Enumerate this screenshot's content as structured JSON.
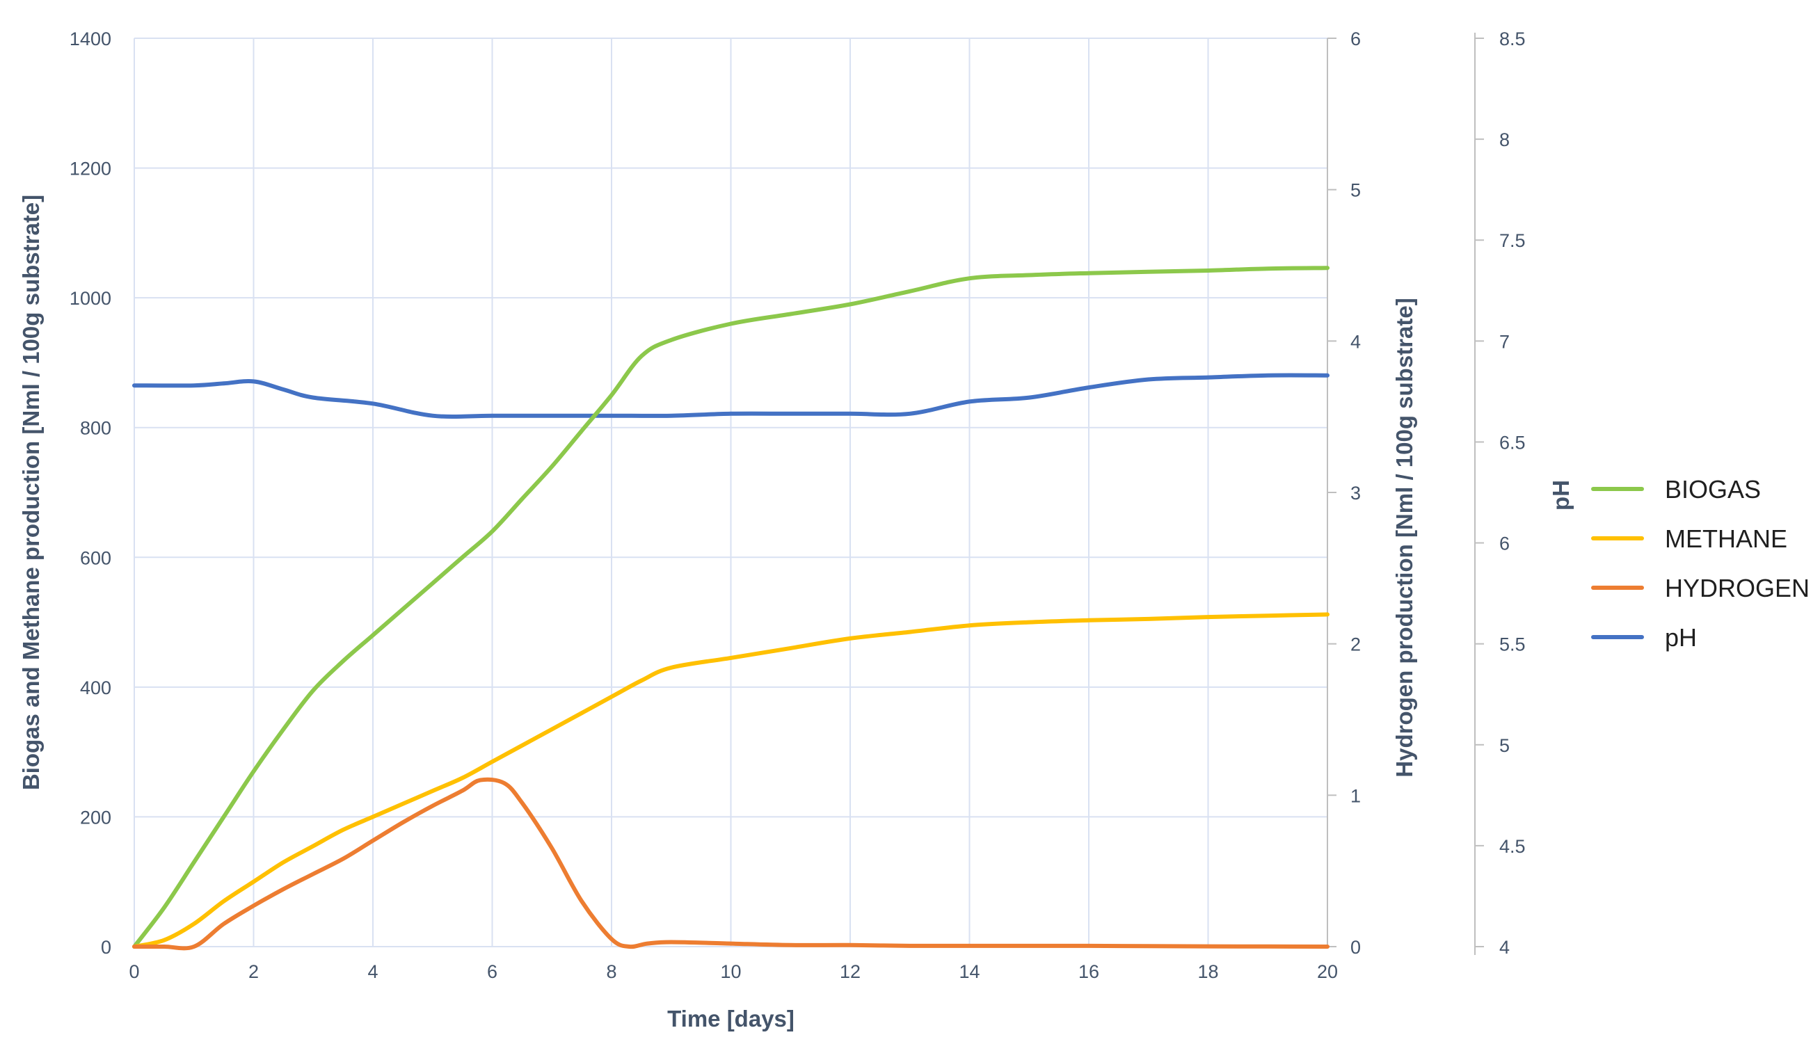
{
  "chart_data": {
    "type": "line",
    "title": "",
    "xlabel": "Time [days]",
    "ylabel_left": "Biogas and Methane production [Nml / 100g substrate]",
    "ylabel_right": "Hydrogen production [Nml / 100g substrate]",
    "ylabel_right2": "pH",
    "xlim": [
      0,
      20
    ],
    "ylim_left": [
      0,
      1400
    ],
    "ylim_right": [
      0,
      6
    ],
    "ylim_right2": [
      4,
      8.5
    ],
    "x_ticks": [
      "0",
      "2",
      "4",
      "6",
      "8",
      "10",
      "12",
      "14",
      "16",
      "18",
      "20"
    ],
    "y_left_ticks": [
      "0",
      "200",
      "400",
      "600",
      "800",
      "1000",
      "1200",
      "1400"
    ],
    "y_right_ticks": [
      "0",
      "1",
      "2",
      "3",
      "4",
      "5",
      "6"
    ],
    "y_right2_ticks": [
      "4",
      "4.5",
      "5",
      "5.5",
      "6",
      "6.5",
      "7",
      "7.5",
      "8",
      "8.5"
    ],
    "grid": true,
    "legend_position": "right",
    "series": [
      {
        "name": "BIOGAS",
        "axis": "left",
        "color": "#8cc84b",
        "x": [
          0,
          0.5,
          1,
          1.5,
          2,
          2.5,
          3,
          3.5,
          4,
          4.5,
          5,
          5.5,
          6,
          6.5,
          7,
          7.5,
          8,
          8.5,
          9,
          10,
          11,
          12,
          13,
          14,
          15,
          16,
          17,
          18,
          19,
          20
        ],
        "y": [
          0,
          60,
          130,
          200,
          270,
          335,
          395,
          440,
          480,
          520,
          560,
          600,
          640,
          690,
          740,
          795,
          850,
          910,
          935,
          960,
          975,
          990,
          1010,
          1030,
          1035,
          1038,
          1040,
          1042,
          1045,
          1046
        ]
      },
      {
        "name": "METHANE",
        "axis": "left",
        "color": "#ffc000",
        "x": [
          0,
          0.5,
          1,
          1.5,
          2,
          2.5,
          3,
          3.5,
          4,
          4.5,
          5,
          5.5,
          6,
          6.5,
          7,
          7.5,
          8,
          8.5,
          9,
          10,
          11,
          12,
          13,
          14,
          15,
          16,
          17,
          18,
          19,
          20
        ],
        "y": [
          0,
          10,
          35,
          70,
          100,
          130,
          155,
          180,
          200,
          220,
          240,
          260,
          285,
          310,
          335,
          360,
          385,
          410,
          430,
          445,
          460,
          475,
          485,
          495,
          500,
          503,
          505,
          508,
          510,
          512
        ]
      },
      {
        "name": "HYDROGEN",
        "axis": "right",
        "color": "#ed7d31",
        "x": [
          0,
          0.5,
          1,
          1.5,
          2,
          2.5,
          3,
          3.5,
          4,
          4.5,
          5,
          5.5,
          5.8,
          6.2,
          6.5,
          7,
          7.5,
          8,
          8.3,
          8.6,
          9,
          10,
          11,
          12,
          13,
          14,
          15,
          16,
          17,
          18,
          19,
          20
        ],
        "y": [
          0,
          0,
          0,
          0.15,
          0.27,
          0.38,
          0.48,
          0.58,
          0.7,
          0.82,
          0.93,
          1.03,
          1.1,
          1.08,
          0.95,
          0.65,
          0.3,
          0.05,
          0,
          0.02,
          0.03,
          0.02,
          0.01,
          0.01,
          0.005,
          0.005,
          0.005,
          0.005,
          0.003,
          0.002,
          0.001,
          0
        ]
      },
      {
        "name": "pH",
        "axis": "right2",
        "color": "#4472c4",
        "x": [
          0,
          1,
          1.5,
          2,
          2.5,
          3,
          4,
          5,
          6,
          7,
          8,
          9,
          10,
          11,
          12,
          13,
          14,
          15,
          16,
          17,
          18,
          19,
          20
        ],
        "y": [
          6.78,
          6.78,
          6.79,
          6.8,
          6.76,
          6.72,
          6.69,
          6.63,
          6.63,
          6.63,
          6.63,
          6.63,
          6.64,
          6.64,
          6.64,
          6.64,
          6.7,
          6.72,
          6.77,
          6.81,
          6.82,
          6.83,
          6.83
        ]
      }
    ]
  }
}
